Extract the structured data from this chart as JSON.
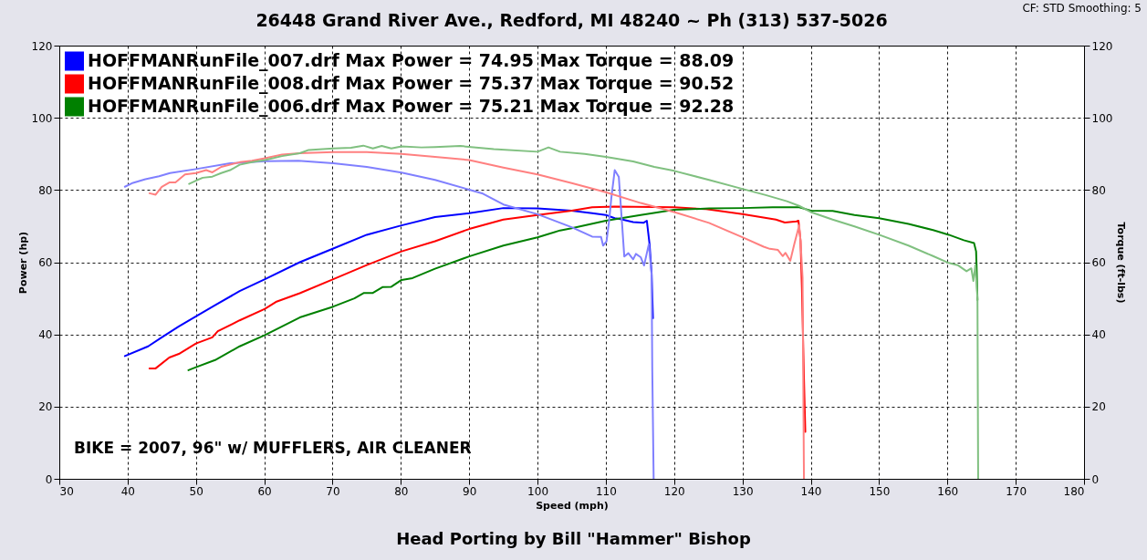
{
  "chart_data": {
    "type": "line",
    "title": "26448 Grand River Ave., Redford, MI 48240 ~ Ph (313) 537-5026",
    "xlabel": "Speed (mph)",
    "ylabel": "Power (hp)",
    "y2label": "Torque (ft-lbs)",
    "annotations": [
      "CF: STD  Smoothing: 5",
      "BIKE = 2007,  96\" w/  MUFFLERS, AIR CLEANER",
      "Head Porting by Bill \"Hammer\" Bishop"
    ],
    "xlim": [
      30,
      180
    ],
    "xticks": [
      30,
      40,
      50,
      60,
      70,
      80,
      90,
      100,
      110,
      120,
      130,
      140,
      150,
      160,
      170,
      180
    ],
    "ylim": [
      0,
      120
    ],
    "yticks": [
      0,
      20,
      40,
      60,
      80,
      100,
      120
    ],
    "y2lim": [
      0,
      120
    ],
    "y2ticks": [
      0,
      20,
      40,
      60,
      80,
      100,
      120
    ],
    "grid": true,
    "legend": "top left",
    "series": [
      {
        "name": "HOFFMANRunFile_007.drf Max Power = 74.95  Max Torque = 88.09",
        "color": "#0000ff",
        "x": [
          39.6,
          43.0,
          45.0,
          47.5,
          50.0,
          52.8,
          56.4,
          60.1,
          65.2,
          70.1,
          75.0,
          80.1,
          85.0,
          90.0,
          95.0,
          100.0,
          105.0,
          108.0,
          110.0,
          111.3,
          112.0,
          114.0,
          115.5,
          116.0,
          116.4,
          116.7,
          116.9
        ],
        "values": [
          34.0,
          36.7,
          39.2,
          42.2,
          45.0,
          48.1,
          52.0,
          55.3,
          60.0,
          63.8,
          67.6,
          70.2,
          72.5,
          73.6,
          75.0,
          74.9,
          74.3,
          73.6,
          73.1,
          72.2,
          72.0,
          71.1,
          70.9,
          71.5,
          65.0,
          57.0,
          44.5
        ]
      },
      {
        "name": "HOFFMANRunFile_008.drf Max Power = 75.37  Max Torque = 90.52",
        "color": "#ff0000",
        "x": [
          43.2,
          44.1,
          46.1,
          47.5,
          50.0,
          52.4,
          53.2,
          56.4,
          60.1,
          61.7,
          65.2,
          70.1,
          75.0,
          80.1,
          85.0,
          90.0,
          95.0,
          100.0,
          105.0,
          108.0,
          111.3,
          120.0,
          124.7,
          130.0,
          134.9,
          136.2,
          137.9,
          138.2,
          138.5,
          138.7,
          139.0,
          139.2
        ],
        "values": [
          30.6,
          30.6,
          33.6,
          34.6,
          37.5,
          39.2,
          40.9,
          43.9,
          47.1,
          49.0,
          51.4,
          55.3,
          59.2,
          63.0,
          65.8,
          69.2,
          71.8,
          73.1,
          74.3,
          75.2,
          75.4,
          75.2,
          74.7,
          73.3,
          71.8,
          71.0,
          71.3,
          71.5,
          66.0,
          53.0,
          28.0,
          13.0
        ]
      },
      {
        "name": "HOFFMANRunFile_006.drf Max Power = 75.21  Max Torque = 92.28",
        "color": "#008000",
        "x": [
          48.9,
          50.0,
          52.8,
          56.4,
          60.1,
          65.2,
          70.1,
          73.2,
          74.6,
          75.9,
          77.3,
          78.6,
          80.1,
          81.7,
          85.0,
          90.0,
          95.0,
          100.0,
          103.3,
          105.0,
          110.0,
          115.1,
          120.0,
          125.1,
          130.0,
          134.4,
          138.3,
          140.0,
          143.2,
          146.4,
          150.0,
          154.3,
          157.9,
          160.2,
          162.4,
          163.9,
          164.2,
          164.3,
          164.4
        ],
        "values": [
          30.1,
          30.9,
          32.9,
          36.7,
          39.8,
          44.7,
          47.7,
          50.0,
          51.5,
          51.5,
          53.1,
          53.2,
          55.1,
          55.6,
          58.2,
          61.6,
          64.6,
          66.9,
          68.8,
          69.4,
          71.5,
          73.1,
          74.5,
          74.9,
          75.0,
          75.2,
          75.2,
          74.3,
          74.2,
          73.1,
          72.2,
          70.6,
          68.9,
          67.6,
          66.1,
          65.3,
          63.0,
          57.0,
          49.5
        ]
      },
      {
        "color": "#8080ff",
        "axis": "y2",
        "x": [
          39.6,
          40.8,
          42.6,
          44.6,
          46.2,
          50.0,
          55.0,
          60.1,
          65.0,
          70.1,
          75.0,
          80.1,
          85.0,
          90.0,
          92.0,
          95.0,
          100.0,
          105.0,
          108.0,
          109.3,
          109.6,
          110.1,
          110.5,
          110.8,
          111.3,
          111.9,
          112.4,
          112.7,
          113.3,
          114.0,
          114.4,
          115.1,
          115.6,
          116.0,
          116.3,
          116.7,
          116.8,
          117.0
        ],
        "values": [
          80.9,
          82.0,
          83.0,
          83.8,
          84.7,
          85.8,
          87.4,
          88.0,
          88.1,
          87.4,
          86.4,
          84.8,
          82.8,
          80.1,
          79.0,
          76.0,
          73.3,
          69.7,
          67.1,
          67.0,
          64.6,
          65.8,
          71.8,
          77.7,
          85.5,
          83.6,
          70.0,
          61.6,
          62.5,
          60.8,
          62.3,
          61.4,
          59.1,
          62.5,
          65.0,
          56.5,
          30.0,
          0
        ]
      },
      {
        "color": "#ff8080",
        "axis": "y2",
        "x": [
          43.2,
          44.1,
          45.0,
          46.1,
          47.0,
          48.4,
          50.0,
          51.5,
          52.4,
          53.7,
          56.4,
          58.2,
          60.1,
          62.6,
          65.2,
          70.1,
          75.0,
          80.1,
          85.0,
          90.0,
          95.0,
          100.0,
          105.0,
          110.0,
          115.1,
          120.0,
          125.1,
          130.0,
          133.1,
          134.0,
          135.2,
          135.9,
          136.3,
          137.0,
          137.6,
          138.3,
          138.5,
          138.8,
          139.0
        ],
        "values": [
          79.1,
          78.7,
          80.9,
          82.1,
          82.1,
          84.3,
          84.7,
          85.5,
          84.9,
          86.4,
          87.7,
          88.1,
          88.8,
          89.8,
          90.2,
          90.5,
          90.5,
          90.0,
          89.2,
          88.3,
          86.2,
          84.3,
          81.9,
          79.4,
          76.4,
          73.9,
          70.9,
          66.9,
          64.3,
          63.7,
          63.4,
          61.7,
          62.6,
          60.4,
          65.1,
          70.2,
          66.0,
          55.7,
          0
        ]
      },
      {
        "color": "#80c080",
        "axis": "y2",
        "x": [
          49.0,
          50.0,
          51.0,
          52.4,
          53.7,
          55.0,
          56.4,
          58.2,
          60.1,
          62.6,
          65.2,
          66.5,
          70.1,
          72.7,
          74.5,
          75.9,
          77.2,
          78.6,
          80.1,
          83.0,
          85.0,
          88.7,
          93.6,
          100.0,
          101.6,
          103.3,
          106.9,
          110.0,
          114.0,
          117.1,
          120.0,
          125.1,
          130.0,
          133.4,
          136.5,
          138.3,
          140.0,
          143.2,
          146.4,
          150.0,
          154.3,
          157.9,
          160.2,
          161.5,
          162.8,
          163.5,
          163.8,
          164.1,
          164.4,
          164.5
        ],
        "values": [
          81.7,
          82.6,
          83.4,
          83.7,
          84.7,
          85.5,
          87.0,
          87.7,
          88.3,
          89.4,
          90.2,
          91.1,
          91.5,
          91.7,
          92.3,
          91.5,
          92.2,
          91.5,
          92.1,
          91.8,
          91.9,
          92.2,
          91.3,
          90.6,
          91.8,
          90.6,
          90.0,
          89.2,
          87.9,
          86.4,
          85.3,
          82.8,
          80.3,
          78.6,
          76.9,
          75.6,
          73.9,
          71.8,
          69.9,
          67.6,
          64.6,
          61.7,
          59.8,
          59.2,
          57.5,
          58.3,
          54.8,
          59.2,
          49.9,
          0
        ]
      }
    ]
  }
}
